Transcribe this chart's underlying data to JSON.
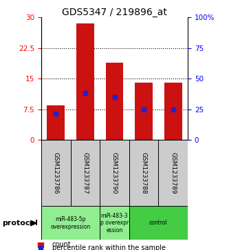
{
  "title": "GDS5347 / 219896_at",
  "samples": [
    "GSM1233786",
    "GSM1233787",
    "GSM1233790",
    "GSM1233788",
    "GSM1233789"
  ],
  "count_values": [
    8.5,
    28.5,
    19.0,
    14.0,
    14.0
  ],
  "percentile_values": [
    6.5,
    11.5,
    10.5,
    7.5,
    7.5
  ],
  "left_yticks": [
    0,
    7.5,
    15,
    22.5,
    30
  ],
  "right_ytick_labels": [
    "0",
    "25",
    "50",
    "75",
    "100%"
  ],
  "bar_color": "#cc1111",
  "dot_color": "#2222cc",
  "sample_bg": "#cccccc",
  "group_light_green": "#90ee90",
  "group_dark_green": "#44cc44",
  "legend_count_label": "count",
  "legend_pct_label": "percentile rank within the sample",
  "protocol_label": "protocol",
  "group_spans": [
    {
      "start": 0,
      "end": 1,
      "label": "miR-483-5p\noverexpression",
      "color": "#90ee90"
    },
    {
      "start": 2,
      "end": 2,
      "label": "miR-483-3\np overexpr\nession",
      "color": "#90ee90"
    },
    {
      "start": 3,
      "end": 4,
      "label": "control",
      "color": "#44cc44"
    }
  ]
}
